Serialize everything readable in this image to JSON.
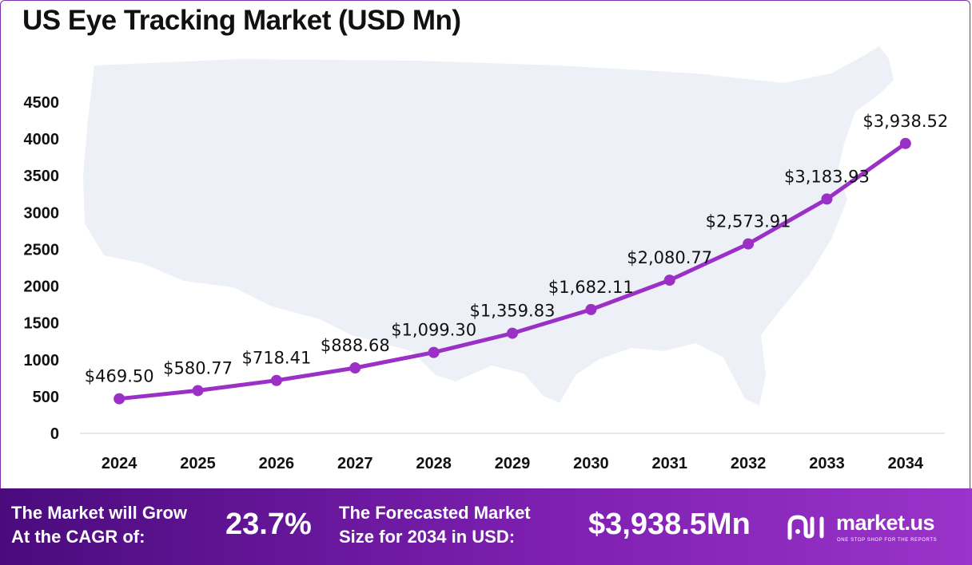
{
  "title": "US Eye Tracking Market (USD Mn)",
  "colors": {
    "line": "#9b30c7",
    "marker": "#9b30c7",
    "map": "#eef0f8",
    "footer_start": "#4a0b7d",
    "footer_end": "#9a33c9",
    "frame": "#7b2fa8"
  },
  "chart_data": {
    "type": "line",
    "title": "US Eye Tracking Market (USD Mn)",
    "xlabel": "",
    "ylabel": "",
    "x": [
      "2024",
      "2025",
      "2026",
      "2027",
      "2028",
      "2029",
      "2030",
      "2031",
      "2032",
      "2033",
      "2034"
    ],
    "series": [
      {
        "values": [
          469.5,
          580.77,
          718.41,
          888.68,
          1099.3,
          1359.83,
          1682.11,
          2080.77,
          2573.91,
          3183.93,
          3938.52
        ],
        "labels": [
          "$469.50",
          "$580.77",
          "$718.41",
          "$888.68",
          "$1,099.30",
          "$1,359.83",
          "$1,682.11",
          "$2,080.77",
          "$2,573.91",
          "$3,183.93",
          "$3,938.52"
        ]
      }
    ],
    "yticks": [
      "0",
      "500",
      "1000",
      "1500",
      "2000",
      "2500",
      "3000",
      "3500",
      "4000",
      "4500"
    ],
    "ylim": [
      0,
      4500
    ],
    "grid": false,
    "legend": "none"
  },
  "footer": {
    "cagr_text_line1": "The Market will Grow",
    "cagr_text_line2": "At the CAGR of:",
    "cagr_value": "23.7%",
    "forecast_text_line1": "The Forecasted Market",
    "forecast_text_line2": "Size for 2034 in USD:",
    "forecast_value": "$3,938.5Mn",
    "brand_name": "market.us",
    "brand_tagline": "ONE STOP SHOP FOR THE REPORTS",
    "brand_logo_icon": "market-us-logo-icon"
  }
}
